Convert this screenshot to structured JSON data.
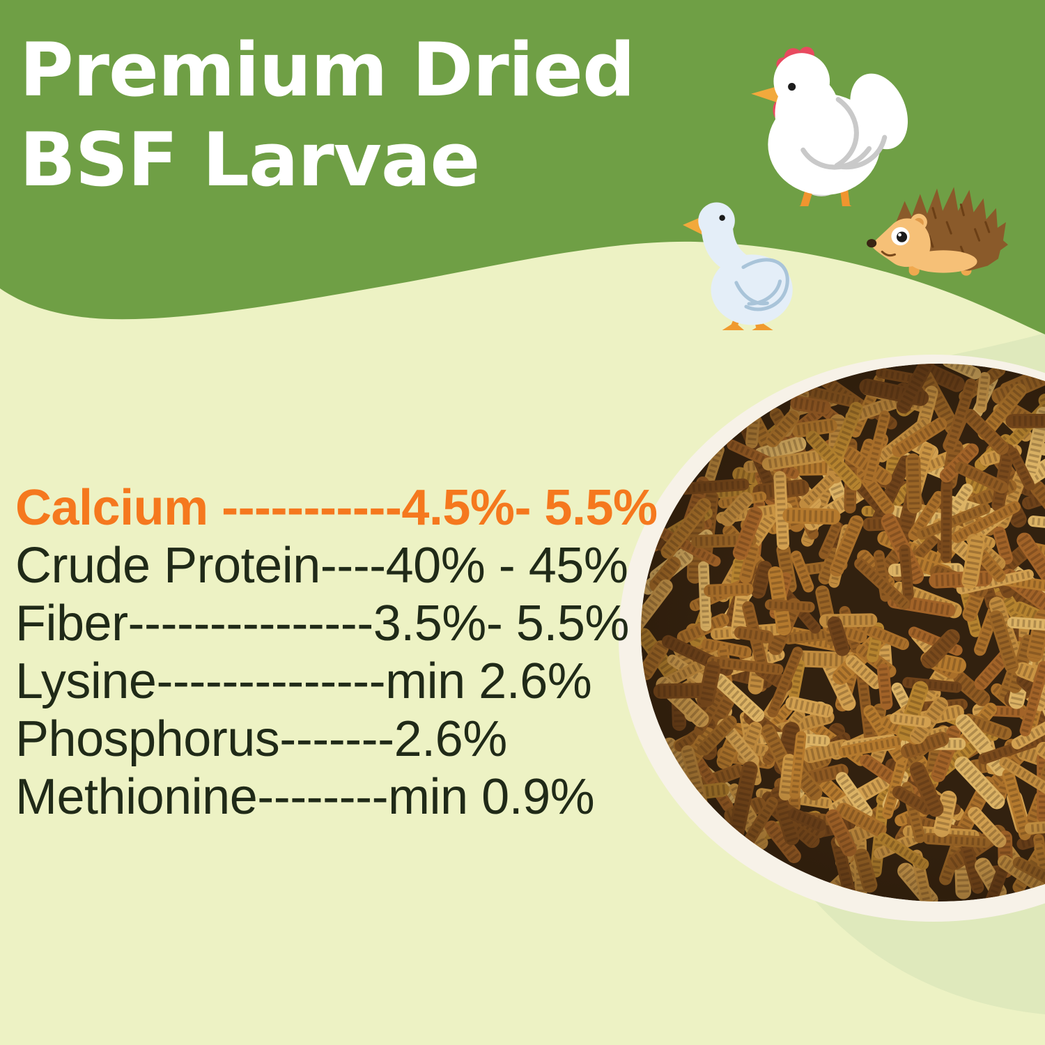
{
  "title": {
    "line1": "Premium Dried",
    "line2": "BSF Larvae"
  },
  "nutrition": {
    "rows": [
      {
        "label": "Calcium",
        "dashes": " -----------",
        "value": "4.5%- 5.5%",
        "highlight": true
      },
      {
        "label": "Crude Protein",
        "dashes": "----",
        "value": "40% - 45%",
        "highlight": false
      },
      {
        "label": "Fiber",
        "dashes": "---------------",
        "value": "3.5%- 5.5%",
        "highlight": false
      },
      {
        "label": "Lysine",
        "dashes": "--------------",
        "value": "min 2.6%",
        "highlight": false
      },
      {
        "label": "Phosphorus",
        "dashes": "-------",
        "value": "2.6%",
        "highlight": false
      },
      {
        "label": "Methionine",
        "dashes": "--------",
        "value": "min 0.9%",
        "highlight": false
      }
    ]
  },
  "images": {
    "animals": [
      "chicken",
      "duck",
      "hedgehog"
    ],
    "photo_alt": "Round white plate filled with dried black soldier fly larvae"
  },
  "colors": {
    "header_green": "#6f9f45",
    "background": "#edf2c4",
    "wave_accent": "#dfe9bc",
    "highlight_orange": "#f5781e",
    "text_dark": "#202a18",
    "plate_white": "#f7f2e8"
  }
}
